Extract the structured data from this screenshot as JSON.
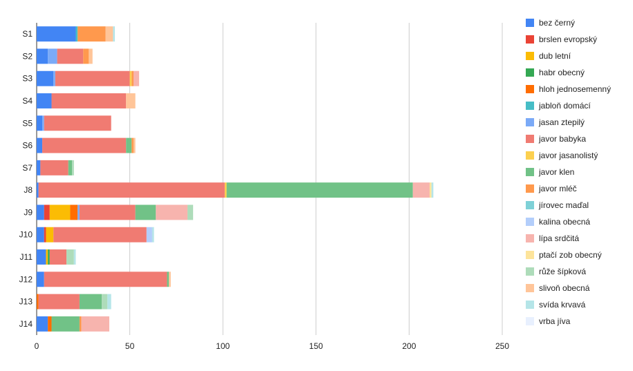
{
  "chart_data": {
    "type": "bar",
    "orientation": "horizontal",
    "stacked": true,
    "categories": [
      "S1",
      "S2",
      "S3",
      "S4",
      "S5",
      "S6",
      "S7",
      "J8",
      "J9",
      "J10",
      "J11",
      "J12",
      "J13",
      "J14"
    ],
    "xlim": [
      0,
      250
    ],
    "xticks": [
      "0",
      "50",
      "100",
      "150",
      "200",
      "250"
    ],
    "grid": true,
    "legend_position": "right",
    "series": [
      {
        "name": "bez černý",
        "color": "#4285f4",
        "values": [
          21,
          6,
          9,
          8,
          3,
          3,
          2,
          1,
          4,
          4,
          5,
          4,
          0,
          6
        ]
      },
      {
        "name": "brslen evropský",
        "color": "#ea4335",
        "values": [
          0,
          0,
          0,
          0,
          0,
          0,
          0,
          0,
          3,
          1,
          0,
          0,
          0,
          0
        ]
      },
      {
        "name": "dub letní",
        "color": "#fbbc04",
        "values": [
          0,
          0,
          0,
          0,
          0,
          0,
          0,
          0,
          11,
          4,
          1,
          0,
          0,
          0
        ]
      },
      {
        "name": "habr obecný",
        "color": "#34a853",
        "values": [
          0,
          0,
          0,
          0,
          0,
          0,
          0,
          0,
          0,
          0,
          1,
          0,
          0,
          0
        ]
      },
      {
        "name": "hloh jednosemenný",
        "color": "#ff6d01",
        "values": [
          0,
          0,
          0,
          0,
          0,
          0,
          0,
          0,
          4,
          0,
          0,
          0,
          1,
          2
        ]
      },
      {
        "name": "jabloň domácí",
        "color": "#46bdc6",
        "values": [
          1,
          0,
          0,
          0,
          0,
          0,
          0,
          0,
          0,
          0,
          0,
          0,
          0,
          0
        ]
      },
      {
        "name": "jasan ztepilý",
        "color": "#7baaf7",
        "values": [
          0,
          5,
          1,
          0,
          1,
          0,
          0,
          0,
          1,
          0,
          0,
          0,
          0,
          0
        ]
      },
      {
        "name": "javor babyka",
        "color": "#f07b72",
        "values": [
          0,
          14,
          40,
          40,
          36,
          45,
          15,
          100,
          30,
          50,
          9,
          66,
          22,
          0
        ]
      },
      {
        "name": "javor jasanolistý",
        "color": "#fcd04f",
        "values": [
          0,
          0,
          1,
          0,
          0,
          0,
          0,
          1,
          0,
          0,
          0,
          0,
          0,
          0
        ]
      },
      {
        "name": "javor klen",
        "color": "#71c287",
        "values": [
          0,
          0,
          0,
          0,
          0,
          3,
          2,
          100,
          11,
          0,
          0,
          1,
          12,
          15
        ]
      },
      {
        "name": "javor mléč",
        "color": "#ff994d",
        "values": [
          15,
          3,
          1,
          0,
          0,
          1,
          0,
          0,
          0,
          0,
          0,
          0,
          0,
          1
        ]
      },
      {
        "name": "jírovec maďal",
        "color": "#7ed1d7",
        "values": [
          0,
          0,
          0,
          0,
          0,
          0,
          0,
          0,
          0,
          0,
          0,
          0,
          0,
          0
        ]
      },
      {
        "name": "kalina obecná",
        "color": "#b3cefb",
        "values": [
          0,
          0,
          0,
          0,
          0,
          0,
          0,
          0,
          0,
          3,
          0,
          0,
          0,
          0
        ]
      },
      {
        "name": "lípa srdčitá",
        "color": "#f7b4ae",
        "values": [
          0,
          0,
          3,
          0,
          0,
          0,
          0,
          9,
          17,
          0,
          0,
          0,
          0,
          15
        ]
      },
      {
        "name": "ptačí zob obecný",
        "color": "#fde49b",
        "values": [
          0,
          0,
          0,
          0,
          0,
          0,
          0,
          1,
          0,
          0,
          0,
          0,
          0,
          0
        ]
      },
      {
        "name": "růže šípková",
        "color": "#aedcba",
        "values": [
          0,
          0,
          0,
          0,
          0,
          0,
          1,
          0,
          3,
          0,
          4,
          0,
          3,
          0
        ]
      },
      {
        "name": "slivoň obecná",
        "color": "#ffc599",
        "values": [
          4,
          2,
          0,
          5,
          0,
          1,
          0,
          0,
          0,
          0,
          0,
          1,
          0,
          0
        ]
      },
      {
        "name": "svída krvavá",
        "color": "#b5e5e8",
        "values": [
          1,
          0,
          0,
          0,
          0,
          0,
          0,
          1,
          0,
          1,
          1,
          0,
          2,
          0
        ]
      },
      {
        "name": "vrba jíva",
        "color": "#e8f0fe",
        "values": [
          0,
          0,
          0,
          0,
          0,
          0,
          0,
          0,
          0,
          0,
          0,
          0,
          0,
          0
        ]
      }
    ]
  }
}
